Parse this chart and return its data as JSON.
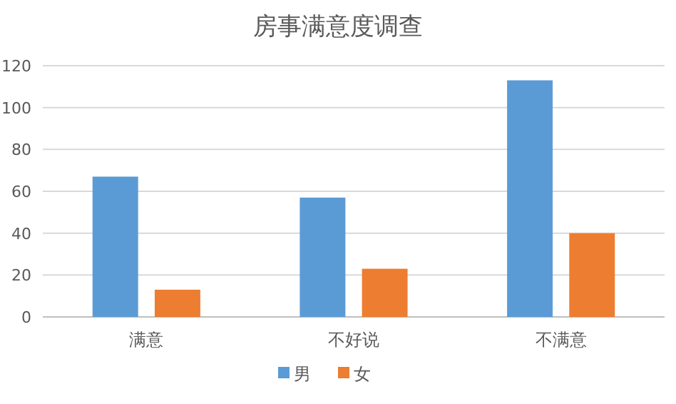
{
  "chart_data": {
    "type": "bar",
    "title": "房事满意度调查",
    "categories": [
      "满意",
      "不好说",
      "不满意"
    ],
    "series": [
      {
        "name": "男",
        "color": "#5b9bd5",
        "values": [
          67,
          57,
          113
        ]
      },
      {
        "name": "女",
        "color": "#ed7d31",
        "values": [
          13,
          23,
          40
        ]
      }
    ],
    "ylim": [
      0,
      120
    ],
    "yticks": [
      0,
      20,
      40,
      60,
      80,
      100,
      120
    ],
    "grid": "y",
    "legend": "bottom"
  }
}
